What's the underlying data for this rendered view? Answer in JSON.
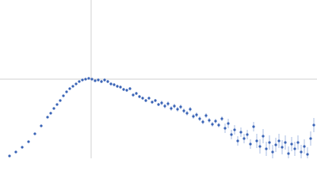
{
  "chart_data": {
    "type": "scatter",
    "color": "#3a64b6",
    "error_color": "#a9bde3",
    "grid": true,
    "xlim": [
      0,
      400
    ],
    "ylim": [
      0,
      200
    ],
    "xticks": [
      115
    ],
    "yticks": [
      100
    ],
    "series": [
      {
        "x": [
          12,
          20,
          28,
          36,
          44,
          52,
          60,
          64,
          68,
          72,
          76,
          80,
          84,
          88,
          92,
          96,
          100,
          104,
          108,
          112,
          116,
          120,
          124,
          128,
          132,
          136,
          140,
          144,
          148,
          152,
          156,
          160,
          164,
          168,
          172,
          176,
          180,
          184,
          188,
          192,
          196,
          200,
          204,
          208,
          212,
          216,
          220,
          224,
          228,
          232,
          236,
          240,
          244,
          248,
          252,
          256,
          260,
          264,
          268,
          272,
          276,
          280,
          284,
          288,
          292,
          296,
          300,
          304,
          308,
          312,
          316,
          320,
          324,
          328,
          332,
          336,
          340,
          344,
          348,
          352,
          356,
          360,
          364,
          368,
          372,
          376,
          380,
          384,
          388,
          392,
          396
        ],
        "values": [
          3,
          8,
          14,
          21,
          31,
          41,
          52,
          57,
          63,
          68,
          73,
          79,
          84,
          88,
          91,
          94,
          97,
          99,
          100,
          101,
          100,
          98,
          99,
          97,
          99,
          97,
          94,
          93,
          91,
          90,
          87,
          86,
          88,
          80,
          82,
          78,
          76,
          73,
          76,
          71,
          73,
          68,
          70,
          66,
          69,
          63,
          66,
          62,
          65,
          60,
          57,
          62,
          53,
          55,
          50,
          46,
          54,
          48,
          43,
          47,
          42,
          50,
          38,
          44,
          30,
          36,
          22,
          33,
          25,
          30,
          18,
          40,
          22,
          15,
          28,
          12,
          20,
          8,
          17,
          22,
          14,
          20,
          6,
          18,
          12,
          20,
          8,
          15,
          5,
          25,
          42
        ],
        "errors": [
          1,
          1,
          1,
          1,
          1,
          1,
          1,
          1,
          1,
          1,
          1,
          1,
          1,
          1,
          1,
          1,
          1,
          1,
          1,
          1,
          1,
          1,
          2,
          2,
          2,
          2,
          2,
          2,
          2,
          2,
          2,
          2,
          2,
          2,
          2,
          2,
          2,
          2,
          2,
          2,
          2,
          2,
          3,
          3,
          3,
          3,
          3,
          3,
          3,
          3,
          3,
          3,
          3,
          3,
          3,
          3,
          3,
          3,
          3,
          3,
          3,
          3,
          6,
          6,
          6,
          6,
          6,
          6,
          6,
          6,
          6,
          6,
          9,
          9,
          9,
          9,
          9,
          9,
          9,
          9,
          9,
          9,
          9,
          9,
          9,
          9,
          9,
          9,
          9,
          9,
          9
        ]
      }
    ]
  }
}
